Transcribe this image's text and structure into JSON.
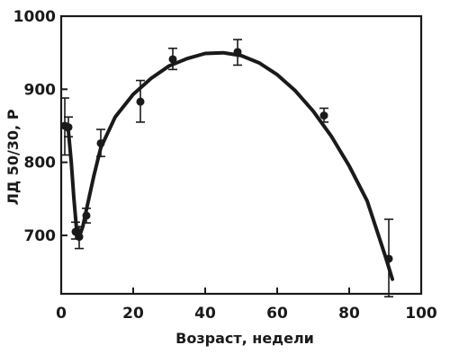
{
  "chart_data": {
    "type": "scatter",
    "xlabel": "Возраст, недели",
    "ylabel": "ЛД 50/30, Р",
    "xlim": [
      0,
      100
    ],
    "ylim": [
      620,
      1000
    ],
    "x_ticks": [
      "0",
      "20",
      "40",
      "60",
      "80",
      "100"
    ],
    "y_ticks": [
      "700",
      "800",
      "900",
      "1000"
    ],
    "grid": false,
    "legend": "none",
    "series": [
      {
        "points": [
          {
            "x": 1,
            "y": 850,
            "err_low": 810,
            "err_high": 888
          },
          {
            "x": 2,
            "y": 848,
            "err_low": 835,
            "err_high": 862
          },
          {
            "x": 4,
            "y": 705,
            "err_low": 695,
            "err_high": 718
          },
          {
            "x": 5,
            "y": 698,
            "err_low": 682,
            "err_high": 712
          },
          {
            "x": 7,
            "y": 727,
            "err_low": 717,
            "err_high": 737
          },
          {
            "x": 11,
            "y": 826,
            "err_low": 808,
            "err_high": 845
          },
          {
            "x": 22,
            "y": 883,
            "err_low": 855,
            "err_high": 912
          },
          {
            "x": 31,
            "y": 941,
            "err_low": 927,
            "err_high": 956
          },
          {
            "x": 49,
            "y": 951,
            "err_low": 933,
            "err_high": 968
          },
          {
            "x": 73,
            "y": 864,
            "err_low": 855,
            "err_high": 874
          },
          {
            "x": 91,
            "y": 668,
            "err_low": 616,
            "err_high": 722
          }
        ]
      }
    ],
    "fit_curve": [
      [
        1,
        848
      ],
      [
        2,
        843
      ],
      [
        2.8,
        800
      ],
      [
        3.5,
        752
      ],
      [
        4.2,
        712
      ],
      [
        5,
        698
      ],
      [
        6,
        712
      ],
      [
        7,
        735
      ],
      [
        9,
        780
      ],
      [
        11,
        820
      ],
      [
        15,
        862
      ],
      [
        20,
        893
      ],
      [
        25,
        915
      ],
      [
        30,
        932
      ],
      [
        35,
        942
      ],
      [
        40,
        949
      ],
      [
        45,
        950
      ],
      [
        50,
        946
      ],
      [
        55,
        936
      ],
      [
        60,
        920
      ],
      [
        65,
        898
      ],
      [
        70,
        870
      ],
      [
        75,
        836
      ],
      [
        80,
        795
      ],
      [
        85,
        747
      ],
      [
        90,
        672
      ],
      [
        92,
        640
      ]
    ],
    "colors": {
      "ink": "#1a1a1a",
      "background": "#ffffff"
    }
  }
}
